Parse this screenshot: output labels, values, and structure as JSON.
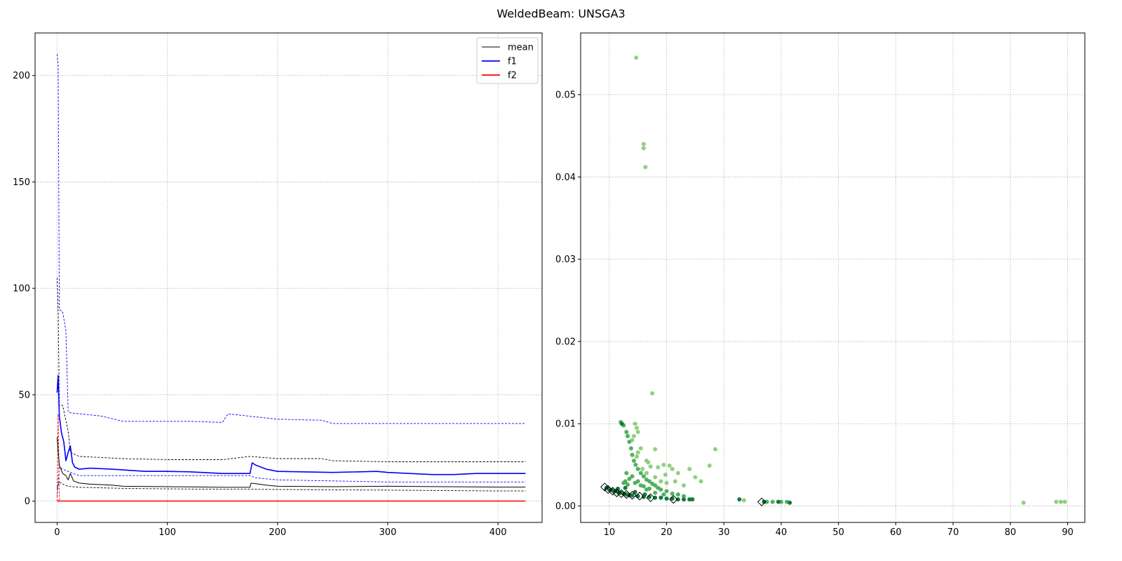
{
  "figure": {
    "title": "WeldedBeam: UNSGA3"
  },
  "chart_data": [
    {
      "type": "line",
      "title": "",
      "xlabel": "",
      "ylabel": "",
      "xlim": [
        -20,
        440
      ],
      "ylim": [
        -10,
        220
      ],
      "xticks": [
        0,
        100,
        200,
        300,
        400
      ],
      "yticks": [
        0,
        50,
        100,
        150,
        200
      ],
      "grid": true,
      "legend": {
        "placement": "top-right",
        "entries": [
          {
            "label": "mean",
            "color": "#000000"
          },
          {
            "label": "f1",
            "color": "#0000ff"
          },
          {
            "label": "f2",
            "color": "#ff0000"
          }
        ]
      },
      "series": [
        {
          "name": "mean",
          "color": "#000000",
          "style": "solid",
          "x": [
            0,
            2,
            5,
            8,
            10,
            12,
            15,
            20,
            30,
            50,
            60,
            100,
            150,
            175,
            176,
            190,
            200,
            250,
            300,
            350,
            400,
            425
          ],
          "y": [
            30,
            17,
            13,
            12,
            10,
            13,
            9.5,
            8.5,
            8,
            7.5,
            7,
            6.8,
            6.5,
            6.5,
            8.5,
            7.5,
            7,
            6.8,
            7,
            6.8,
            6.6,
            6.6
          ]
        },
        {
          "name": "mean-upper",
          "color": "#000000",
          "style": "dashed",
          "x": [
            0,
            1,
            2,
            5,
            10,
            12,
            20,
            60,
            100,
            150,
            175,
            200,
            240,
            250,
            300,
            400,
            425
          ],
          "y": [
            105,
            89,
            45,
            45,
            33,
            23,
            21,
            20,
            19.5,
            19.5,
            21,
            20,
            20,
            19,
            18.5,
            18.5,
            18.5
          ]
        },
        {
          "name": "mean-lower",
          "color": "#000000",
          "style": "dashed",
          "x": [
            0,
            2,
            5,
            10,
            20,
            60,
            100,
            150,
            175,
            200,
            250,
            300,
            350,
            400,
            425
          ],
          "y": [
            6,
            9,
            8,
            7,
            6.5,
            6,
            5.8,
            5.6,
            5.6,
            5.5,
            5.3,
            5.2,
            5,
            4.8,
            4.8
          ]
        },
        {
          "name": "f1",
          "color": "#0000ff",
          "style": "solid",
          "x": [
            0,
            1,
            2,
            4,
            6,
            8,
            10,
            12,
            14,
            16,
            20,
            30,
            50,
            80,
            100,
            120,
            150,
            175,
            177,
            180,
            185,
            190,
            200,
            250,
            290,
            300,
            320,
            340,
            360,
            380,
            400,
            425
          ],
          "y": [
            51,
            59,
            40,
            32,
            28,
            19,
            23,
            26,
            18,
            16,
            15,
            15.5,
            15,
            14,
            14,
            13.8,
            13,
            13,
            18,
            17,
            16,
            15,
            14,
            13.5,
            14,
            13.5,
            13,
            12.5,
            12.5,
            13,
            13,
            13
          ]
        },
        {
          "name": "f1-upper",
          "color": "#0000ff",
          "style": "dashed",
          "x": [
            0,
            1,
            2,
            5,
            8,
            10,
            12,
            40,
            60,
            100,
            120,
            150,
            155,
            200,
            240,
            250,
            300,
            400,
            425
          ],
          "y": [
            210,
            205,
            90,
            89,
            80,
            42,
            41.5,
            40,
            37.5,
            37.5,
            37.5,
            37,
            41,
            38.5,
            38,
            36.5,
            36.5,
            36.5,
            36.5
          ]
        },
        {
          "name": "f1-lower",
          "color": "#0000ff",
          "style": "dashed",
          "x": [
            0,
            2,
            5,
            10,
            20,
            60,
            100,
            150,
            175,
            180,
            200,
            250,
            300,
            350,
            400,
            425
          ],
          "y": [
            2,
            16,
            15,
            14,
            12,
            12,
            12,
            12,
            12,
            11,
            10,
            9.5,
            9,
            9,
            9,
            9
          ]
        },
        {
          "name": "f2",
          "color": "#ff0000",
          "style": "solid",
          "x": [
            0,
            1,
            2,
            425
          ],
          "y": [
            0.1,
            0.1,
            0.05,
            0.05
          ]
        },
        {
          "name": "f2-upper",
          "color": "#ff0000",
          "style": "dashed",
          "x": [
            0,
            1,
            2
          ],
          "y": [
            0,
            41,
            0
          ]
        }
      ]
    },
    {
      "type": "scatter",
      "title": "",
      "xlabel": "",
      "ylabel": "",
      "xlim": [
        5,
        93
      ],
      "ylim": [
        -0.002,
        0.0575
      ],
      "xticks": [
        10,
        20,
        30,
        40,
        50,
        60,
        70,
        80,
        90
      ],
      "yticks": [
        0.0,
        0.01,
        0.02,
        0.03,
        0.04,
        0.05
      ],
      "ytick_labels": [
        "0.00",
        "0.01",
        "0.02",
        "0.03",
        "0.04",
        "0.05"
      ],
      "grid": true,
      "groups": [
        {
          "name": "light",
          "color": "#8fd17e",
          "points": [
            [
              14.7,
              0.0545
            ],
            [
              16.0,
              0.044
            ],
            [
              16.0,
              0.0435
            ],
            [
              16.3,
              0.0412
            ],
            [
              17.5,
              0.0137
            ],
            [
              18.0,
              0.0069
            ],
            [
              28.5,
              0.0069
            ],
            [
              14.5,
              0.01
            ],
            [
              14.8,
              0.0095
            ],
            [
              15.0,
              0.009
            ],
            [
              14.3,
              0.0085
            ],
            [
              14.0,
              0.008
            ],
            [
              15.5,
              0.007
            ],
            [
              15.0,
              0.0065
            ],
            [
              14.8,
              0.006
            ],
            [
              16.5,
              0.0055
            ],
            [
              16.8,
              0.0053
            ],
            [
              17.2,
              0.0048
            ],
            [
              18.5,
              0.0047
            ],
            [
              19.5,
              0.005
            ],
            [
              20.5,
              0.0049
            ],
            [
              21.0,
              0.0045
            ],
            [
              22.0,
              0.004
            ],
            [
              24.0,
              0.0045
            ],
            [
              25.0,
              0.0035
            ],
            [
              26.0,
              0.003
            ],
            [
              27.5,
              0.0049
            ],
            [
              18.0,
              0.0035
            ],
            [
              19.0,
              0.003
            ],
            [
              20.0,
              0.0028
            ],
            [
              21.5,
              0.003
            ],
            [
              23.0,
              0.0025
            ],
            [
              33.5,
              0.0007
            ],
            [
              82.3,
              0.0004
            ],
            [
              88.0,
              0.0005
            ],
            [
              88.8,
              0.0005
            ],
            [
              89.5,
              0.0005
            ],
            [
              16.5,
              0.004
            ],
            [
              15.8,
              0.0045
            ],
            [
              19.8,
              0.0038
            ]
          ]
        },
        {
          "name": "medium",
          "color": "#52b061",
          "points": [
            [
              12.0,
              0.0102
            ],
            [
              12.5,
              0.0098
            ],
            [
              13.0,
              0.009
            ],
            [
              13.2,
              0.0085
            ],
            [
              13.5,
              0.0078
            ],
            [
              13.8,
              0.007
            ],
            [
              14.0,
              0.0062
            ],
            [
              14.3,
              0.0055
            ],
            [
              14.6,
              0.005
            ],
            [
              15.0,
              0.0045
            ],
            [
              15.5,
              0.004
            ],
            [
              16.0,
              0.0036
            ],
            [
              16.5,
              0.0032
            ],
            [
              17.0,
              0.003
            ],
            [
              17.5,
              0.0027
            ],
            [
              18.0,
              0.0025
            ],
            [
              18.5,
              0.0022
            ],
            [
              19.0,
              0.002
            ],
            [
              20.0,
              0.0018
            ],
            [
              21.0,
              0.0015
            ],
            [
              22.0,
              0.0014
            ],
            [
              23.0,
              0.0012
            ],
            [
              13.0,
              0.004
            ],
            [
              12.8,
              0.003
            ],
            [
              13.5,
              0.0033
            ],
            [
              14.0,
              0.0036
            ],
            [
              15.0,
              0.003
            ],
            [
              16.0,
              0.0024
            ],
            [
              17.0,
              0.0021
            ],
            [
              12.5,
              0.0028
            ],
            [
              13.2,
              0.0026
            ],
            [
              14.5,
              0.0028
            ],
            [
              15.5,
              0.0025
            ],
            [
              16.5,
              0.002
            ],
            [
              18.0,
              0.0016
            ],
            [
              19.5,
              0.0014
            ],
            [
              37.5,
              0.0005
            ],
            [
              38.5,
              0.0005
            ],
            [
              40.0,
              0.0005
            ],
            [
              41.0,
              0.0005
            ]
          ]
        },
        {
          "name": "dark",
          "color": "#137a3b",
          "points": [
            [
              9.5,
              0.0022
            ],
            [
              10.0,
              0.002
            ],
            [
              10.5,
              0.0019
            ],
            [
              11.0,
              0.0018
            ],
            [
              11.5,
              0.0017
            ],
            [
              12.0,
              0.0016
            ],
            [
              12.5,
              0.0015
            ],
            [
              13.0,
              0.0014
            ],
            [
              13.5,
              0.0013
            ],
            [
              14.0,
              0.0013
            ],
            [
              15.0,
              0.0012
            ],
            [
              16.0,
              0.0011
            ],
            [
              17.0,
              0.0011
            ],
            [
              18.0,
              0.001
            ],
            [
              19.0,
              0.001
            ],
            [
              20.0,
              0.0009
            ],
            [
              21.0,
              0.0009
            ],
            [
              22.0,
              0.0008
            ],
            [
              23.0,
              0.0008
            ],
            [
              24.0,
              0.0008
            ],
            [
              24.5,
              0.0008
            ],
            [
              12.2,
              0.01
            ],
            [
              32.7,
              0.0008
            ],
            [
              37.0,
              0.0005
            ],
            [
              39.5,
              0.0005
            ],
            [
              41.5,
              0.0004
            ],
            [
              12.8,
              0.0022
            ],
            [
              14.5,
              0.0017
            ],
            [
              16.2,
              0.0014
            ],
            [
              11.5,
              0.0021
            ]
          ]
        },
        {
          "name": "front",
          "color": "#000000",
          "marker": "diamond",
          "points": [
            [
              9.2,
              0.0023
            ],
            [
              9.8,
              0.002
            ],
            [
              10.6,
              0.0018
            ],
            [
              11.3,
              0.0016
            ],
            [
              12.1,
              0.0015
            ],
            [
              13.0,
              0.0014
            ],
            [
              14.0,
              0.0013
            ],
            [
              15.3,
              0.0012
            ],
            [
              17.2,
              0.001
            ],
            [
              21.2,
              0.0008
            ],
            [
              36.6,
              0.0005
            ]
          ]
        }
      ]
    }
  ]
}
